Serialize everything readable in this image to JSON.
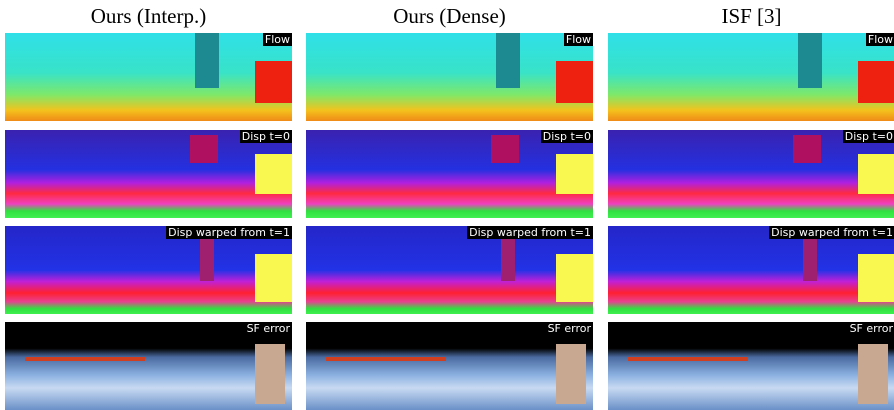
{
  "columns": [
    "Ours (Interp.)",
    "Ours (Dense)",
    "ISF [3]"
  ],
  "rows": [
    "Flow",
    "Disp t=0",
    "Disp warped from t=1",
    "SF error"
  ]
}
